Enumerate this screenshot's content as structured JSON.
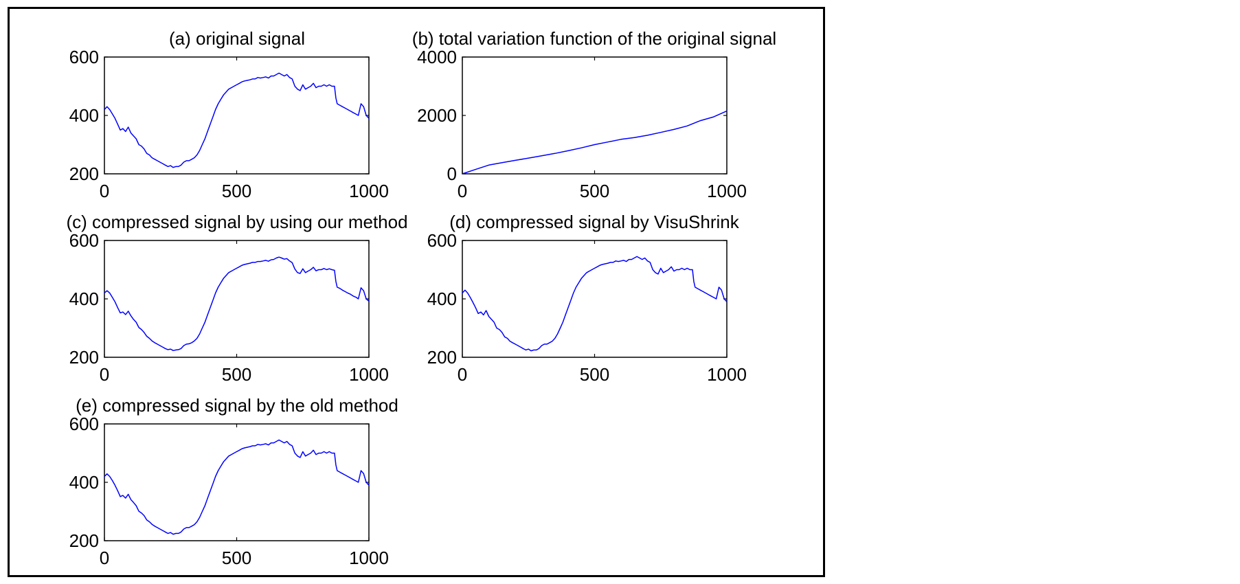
{
  "chart_data": [
    {
      "type": "line",
      "title": "(a) original signal",
      "xlim": [
        0,
        1000
      ],
      "ylim": [
        200,
        600
      ],
      "xticks": [
        0,
        500,
        1000
      ],
      "yticks": [
        200,
        400,
        600
      ],
      "line_color": "#0000ff",
      "series": [
        {
          "x": [
            0,
            10,
            20,
            30,
            40,
            50,
            60,
            70,
            80,
            90,
            100,
            110,
            120,
            130,
            140,
            150,
            160,
            170,
            180,
            190,
            200,
            210,
            220,
            230,
            240,
            250,
            260,
            270,
            280,
            290,
            300,
            310,
            320,
            330,
            340,
            350,
            360,
            370,
            380,
            390,
            400,
            410,
            420,
            430,
            440,
            450,
            460,
            470,
            480,
            490,
            500,
            510,
            520,
            530,
            540,
            550,
            560,
            570,
            580,
            590,
            600,
            610,
            620,
            630,
            640,
            650,
            660,
            670,
            680,
            690,
            700,
            710,
            720,
            730,
            740,
            750,
            760,
            770,
            780,
            790,
            800,
            810,
            820,
            830,
            840,
            850,
            860,
            870,
            875,
            880,
            890,
            900,
            910,
            920,
            930,
            940,
            950,
            960,
            970,
            980,
            985,
            990,
            1000
          ],
          "y": [
            420,
            430,
            420,
            405,
            390,
            370,
            350,
            355,
            345,
            360,
            340,
            330,
            320,
            300,
            295,
            285,
            270,
            265,
            255,
            250,
            245,
            240,
            235,
            230,
            225,
            228,
            222,
            225,
            225,
            230,
            240,
            245,
            245,
            250,
            255,
            265,
            280,
            300,
            320,
            345,
            370,
            395,
            420,
            440,
            455,
            470,
            480,
            490,
            495,
            500,
            505,
            510,
            515,
            518,
            520,
            522,
            525,
            525,
            530,
            528,
            530,
            532,
            528,
            535,
            535,
            540,
            545,
            540,
            535,
            540,
            530,
            525,
            500,
            490,
            485,
            505,
            490,
            495,
            500,
            510,
            495,
            500,
            500,
            505,
            500,
            505,
            500,
            500,
            460,
            440,
            435,
            430,
            425,
            420,
            415,
            410,
            405,
            400,
            440,
            430,
            415,
            400,
            390
          ]
        }
      ]
    },
    {
      "type": "line",
      "title": "(b) total variation function of the original signal",
      "xlim": [
        0,
        1000
      ],
      "ylim": [
        0,
        4000
      ],
      "xticks": [
        0,
        500,
        1000
      ],
      "yticks": [
        0,
        2000,
        4000
      ],
      "line_color": "#0000ff",
      "series": [
        {
          "x": [
            0,
            50,
            100,
            150,
            200,
            250,
            300,
            350,
            400,
            450,
            500,
            550,
            600,
            650,
            700,
            750,
            800,
            850,
            900,
            950,
            1000
          ],
          "y": [
            0,
            150,
            300,
            380,
            460,
            540,
            620,
            700,
            790,
            890,
            1000,
            1090,
            1180,
            1240,
            1320,
            1420,
            1520,
            1640,
            1820,
            1950,
            2150
          ]
        }
      ]
    },
    {
      "type": "line",
      "title": "(c) compressed signal by using our method",
      "xlim": [
        0,
        1000
      ],
      "ylim": [
        200,
        600
      ],
      "xticks": [
        0,
        500,
        1000
      ],
      "yticks": [
        200,
        400,
        600
      ],
      "line_color": "#0000ff",
      "series": [
        {
          "x": [
            0,
            10,
            20,
            30,
            40,
            50,
            60,
            70,
            80,
            90,
            100,
            110,
            120,
            130,
            140,
            150,
            160,
            170,
            180,
            190,
            200,
            210,
            220,
            230,
            240,
            250,
            260,
            270,
            280,
            290,
            300,
            310,
            320,
            330,
            340,
            350,
            360,
            370,
            380,
            390,
            400,
            410,
            420,
            430,
            440,
            450,
            460,
            470,
            480,
            490,
            500,
            510,
            520,
            530,
            540,
            550,
            560,
            570,
            580,
            590,
            600,
            610,
            620,
            630,
            640,
            650,
            660,
            670,
            680,
            690,
            700,
            710,
            720,
            730,
            740,
            750,
            760,
            770,
            780,
            790,
            800,
            810,
            820,
            830,
            840,
            850,
            860,
            870,
            875,
            880,
            890,
            900,
            910,
            920,
            930,
            940,
            950,
            960,
            970,
            980,
            985,
            990,
            1000
          ],
          "y": [
            420,
            428,
            420,
            405,
            390,
            370,
            352,
            355,
            346,
            358,
            342,
            330,
            320,
            302,
            295,
            285,
            272,
            265,
            256,
            250,
            245,
            240,
            235,
            230,
            226,
            228,
            223,
            225,
            226,
            230,
            240,
            245,
            246,
            250,
            256,
            265,
            280,
            300,
            320,
            345,
            370,
            395,
            420,
            440,
            455,
            470,
            480,
            490,
            495,
            500,
            505,
            510,
            515,
            518,
            520,
            522,
            525,
            525,
            528,
            528,
            530,
            532,
            529,
            534,
            535,
            540,
            543,
            540,
            536,
            538,
            530,
            524,
            502,
            490,
            487,
            503,
            490,
            495,
            500,
            508,
            496,
            500,
            500,
            504,
            500,
            503,
            500,
            498,
            460,
            440,
            436,
            430,
            425,
            420,
            416,
            410,
            406,
            400,
            438,
            428,
            414,
            400,
            392
          ]
        }
      ]
    },
    {
      "type": "line",
      "title": "(d) compressed signal by VisuShrink",
      "xlim": [
        0,
        1000
      ],
      "ylim": [
        200,
        600
      ],
      "xticks": [
        0,
        500,
        1000
      ],
      "yticks": [
        200,
        400,
        600
      ],
      "line_color": "#0000ff",
      "series": [
        {
          "x": [
            0,
            10,
            20,
            30,
            40,
            50,
            60,
            70,
            80,
            90,
            100,
            110,
            120,
            130,
            140,
            150,
            160,
            170,
            180,
            190,
            200,
            210,
            220,
            230,
            240,
            250,
            260,
            270,
            280,
            290,
            300,
            310,
            320,
            330,
            340,
            350,
            360,
            370,
            380,
            390,
            400,
            410,
            420,
            430,
            440,
            450,
            460,
            470,
            480,
            490,
            500,
            510,
            520,
            530,
            540,
            550,
            560,
            570,
            580,
            590,
            600,
            610,
            620,
            630,
            640,
            650,
            660,
            670,
            680,
            690,
            700,
            710,
            720,
            730,
            740,
            750,
            760,
            770,
            780,
            790,
            800,
            810,
            820,
            830,
            840,
            850,
            860,
            870,
            875,
            880,
            890,
            900,
            910,
            920,
            930,
            940,
            950,
            960,
            970,
            980,
            985,
            990,
            1000
          ],
          "y": [
            420,
            430,
            420,
            405,
            388,
            370,
            350,
            355,
            345,
            360,
            340,
            330,
            320,
            300,
            295,
            285,
            270,
            265,
            255,
            250,
            245,
            240,
            235,
            230,
            225,
            228,
            222,
            225,
            225,
            230,
            240,
            245,
            245,
            250,
            255,
            265,
            280,
            300,
            320,
            345,
            370,
            395,
            420,
            440,
            455,
            470,
            480,
            490,
            495,
            500,
            505,
            510,
            515,
            518,
            520,
            522,
            525,
            525,
            530,
            528,
            530,
            532,
            528,
            535,
            535,
            540,
            545,
            540,
            535,
            540,
            530,
            525,
            500,
            490,
            485,
            505,
            490,
            495,
            500,
            510,
            495,
            500,
            500,
            505,
            500,
            505,
            500,
            500,
            460,
            440,
            435,
            430,
            425,
            420,
            415,
            410,
            405,
            400,
            440,
            430,
            415,
            400,
            390
          ]
        }
      ]
    },
    {
      "type": "line",
      "title": "(e) compressed signal by the old method",
      "xlim": [
        0,
        1000
      ],
      "ylim": [
        200,
        600
      ],
      "xticks": [
        0,
        500,
        1000
      ],
      "yticks": [
        200,
        400,
        600
      ],
      "line_color": "#0000ff",
      "series": [
        {
          "x": [
            0,
            10,
            20,
            30,
            40,
            50,
            60,
            70,
            80,
            90,
            100,
            110,
            120,
            130,
            140,
            150,
            160,
            170,
            180,
            190,
            200,
            210,
            220,
            230,
            240,
            250,
            260,
            270,
            280,
            290,
            300,
            310,
            320,
            330,
            340,
            350,
            360,
            370,
            380,
            390,
            400,
            410,
            420,
            430,
            440,
            450,
            460,
            470,
            480,
            490,
            500,
            510,
            520,
            530,
            540,
            550,
            560,
            570,
            580,
            590,
            600,
            610,
            620,
            630,
            640,
            650,
            660,
            670,
            680,
            690,
            700,
            710,
            720,
            730,
            740,
            750,
            760,
            770,
            780,
            790,
            800,
            810,
            820,
            830,
            840,
            850,
            860,
            870,
            875,
            880,
            890,
            900,
            910,
            920,
            930,
            940,
            950,
            960,
            970,
            980,
            985,
            990,
            1000
          ],
          "y": [
            420,
            429,
            420,
            406,
            390,
            371,
            351,
            355,
            346,
            359,
            341,
            331,
            320,
            301,
            295,
            286,
            271,
            265,
            256,
            250,
            245,
            240,
            235,
            230,
            225,
            228,
            222,
            225,
            225,
            230,
            240,
            245,
            245,
            250,
            255,
            265,
            280,
            300,
            320,
            345,
            370,
            395,
            420,
            440,
            455,
            470,
            480,
            490,
            495,
            500,
            505,
            510,
            515,
            518,
            520,
            522,
            525,
            525,
            530,
            528,
            530,
            532,
            528,
            535,
            535,
            540,
            545,
            540,
            535,
            540,
            530,
            525,
            500,
            490,
            485,
            505,
            490,
            495,
            500,
            510,
            495,
            500,
            500,
            505,
            500,
            505,
            500,
            500,
            460,
            440,
            435,
            430,
            425,
            420,
            415,
            410,
            405,
            400,
            440,
            430,
            415,
            400,
            390
          ]
        }
      ]
    }
  ]
}
